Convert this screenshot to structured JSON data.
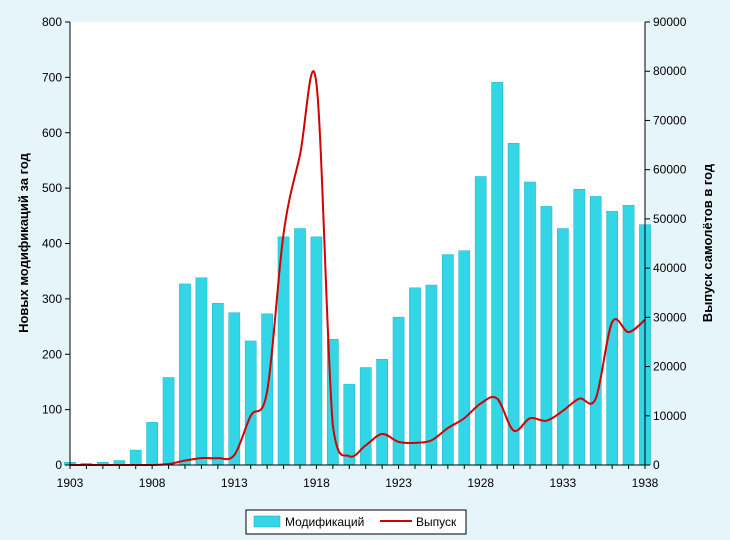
{
  "chart_data": {
    "type": "bar",
    "title": "",
    "xlabel": "",
    "ylabel": "Новых модификаций за год",
    "y2label": "Выпуск самолётов в год",
    "ylim": [
      0,
      800
    ],
    "y2lim": [
      0,
      90000
    ],
    "yticks": [
      0,
      100,
      200,
      300,
      400,
      500,
      600,
      700,
      800
    ],
    "y2ticks": [
      0,
      10000,
      20000,
      30000,
      40000,
      50000,
      60000,
      70000,
      80000,
      90000
    ],
    "xticks": [
      1903,
      1908,
      1913,
      1918,
      1923,
      1928,
      1933,
      1938
    ],
    "grid": false,
    "legend_position": "bottom",
    "colors": {
      "background": "#e6f5fa",
      "plot_area": "#ffffff",
      "bars": "#33d6e6",
      "line": "#d40000"
    },
    "x": [
      1903,
      1904,
      1905,
      1906,
      1907,
      1908,
      1909,
      1910,
      1911,
      1912,
      1913,
      1914,
      1915,
      1916,
      1917,
      1918,
      1919,
      1920,
      1921,
      1922,
      1923,
      1924,
      1925,
      1926,
      1927,
      1928,
      1929,
      1930,
      1931,
      1932,
      1933,
      1934,
      1935,
      1936,
      1937,
      1938
    ],
    "series": [
      {
        "name": "Модификаций",
        "type": "bar",
        "axis": "left",
        "values": [
          5,
          3,
          5,
          8,
          27,
          77,
          158,
          327,
          338,
          292,
          275,
          224,
          273,
          412,
          427,
          412,
          227,
          146,
          176,
          191,
          267,
          320,
          325,
          380,
          387,
          521,
          691,
          581,
          511,
          467,
          427,
          498,
          485,
          458,
          469,
          434
        ]
      },
      {
        "name": "Выпуск",
        "type": "line",
        "axis": "right",
        "values": [
          0,
          0,
          0,
          0,
          0,
          0,
          200,
          900,
          1400,
          1400,
          2000,
          10000,
          15000,
          47000,
          63000,
          77500,
          8000,
          1800,
          4000,
          6300,
          4700,
          4500,
          5000,
          7500,
          9500,
          12500,
          13500,
          7000,
          9500,
          9000,
          11000,
          13500,
          13500,
          29000,
          27000,
          29500
        ]
      }
    ]
  }
}
